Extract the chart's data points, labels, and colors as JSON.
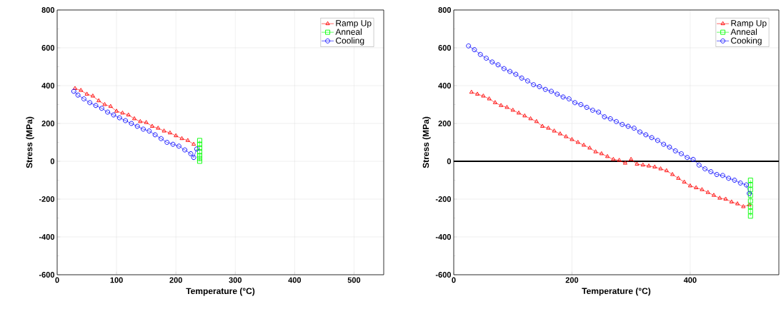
{
  "chart_data": [
    {
      "type": "line",
      "xlabel": "Temperature (°C)",
      "ylabel": "Stress (MPa)",
      "xlim": [
        0,
        550
      ],
      "ylim": [
        -600,
        800
      ],
      "xticks": [
        0,
        100,
        200,
        300,
        400,
        500
      ],
      "yticks": [
        -600,
        -400,
        -200,
        0,
        200,
        400,
        600,
        800
      ],
      "grid": true,
      "legend": "top right",
      "series": [
        {
          "name": "Ramp Up",
          "color": "#ff0000",
          "marker": "triangle",
          "x": [
            30,
            40,
            50,
            60,
            70,
            80,
            90,
            100,
            110,
            120,
            130,
            140,
            150,
            160,
            170,
            180,
            190,
            200,
            210,
            220,
            230
          ],
          "values": [
            385,
            375,
            355,
            345,
            320,
            300,
            290,
            265,
            255,
            245,
            225,
            210,
            205,
            185,
            175,
            160,
            150,
            135,
            120,
            110,
            90
          ]
        },
        {
          "name": "Anneal",
          "color": "#00ff00",
          "marker": "square",
          "x": [
            240,
            240,
            240,
            240,
            240,
            240,
            240
          ],
          "values": [
            110,
            90,
            70,
            50,
            30,
            15,
            0
          ]
        },
        {
          "name": "Cooling",
          "color": "#0000ff",
          "marker": "circle",
          "x": [
            235,
            230,
            225,
            215,
            205,
            195,
            185,
            175,
            165,
            155,
            145,
            135,
            125,
            115,
            105,
            95,
            85,
            75,
            65,
            55,
            45,
            35,
            28
          ],
          "values": [
            65,
            20,
            40,
            60,
            80,
            90,
            100,
            120,
            140,
            160,
            170,
            185,
            200,
            215,
            230,
            245,
            260,
            280,
            295,
            310,
            330,
            350,
            370
          ]
        }
      ]
    },
    {
      "type": "line",
      "xlabel": "Temperature (°C)",
      "ylabel": "Stress (MPa)",
      "xlim": [
        0,
        550
      ],
      "ylim": [
        -600,
        800
      ],
      "xticks": [
        0,
        200,
        400
      ],
      "yticks": [
        -600,
        -400,
        -200,
        0,
        200,
        400,
        600,
        800
      ],
      "grid": true,
      "legend": "top right",
      "ref_lines": [
        {
          "axis": "y",
          "value": 0,
          "color": "#000000"
        }
      ],
      "series": [
        {
          "name": "Ramp Up",
          "color": "#ff0000",
          "marker": "triangle",
          "x": [
            30,
            40,
            50,
            60,
            70,
            80,
            90,
            100,
            110,
            120,
            130,
            140,
            150,
            160,
            170,
            180,
            190,
            200,
            210,
            220,
            230,
            240,
            250,
            260,
            270,
            280,
            290,
            300,
            310,
            320,
            330,
            340,
            350,
            360,
            370,
            380,
            390,
            400,
            410,
            420,
            430,
            440,
            450,
            460,
            470,
            480,
            490,
            500
          ],
          "values": [
            365,
            355,
            345,
            330,
            310,
            295,
            285,
            270,
            255,
            240,
            225,
            210,
            185,
            175,
            160,
            145,
            130,
            115,
            100,
            85,
            70,
            50,
            40,
            25,
            10,
            5,
            -10,
            10,
            -15,
            -20,
            -25,
            -30,
            -40,
            -50,
            -70,
            -90,
            -110,
            -130,
            -140,
            -150,
            -165,
            -180,
            -195,
            -200,
            -215,
            -225,
            -240,
            -230
          ]
        },
        {
          "name": "Anneal",
          "color": "#00ff00",
          "marker": "square",
          "x": [
            502,
            502,
            502,
            502,
            502,
            502,
            502,
            502
          ],
          "values": [
            -100,
            -125,
            -150,
            -180,
            -210,
            -240,
            -265,
            -290
          ]
        },
        {
          "name": "Cooking",
          "color": "#0000ff",
          "marker": "circle",
          "x": [
            500,
            495,
            485,
            475,
            465,
            455,
            445,
            435,
            425,
            415,
            405,
            395,
            385,
            375,
            365,
            355,
            345,
            335,
            325,
            315,
            305,
            295,
            285,
            275,
            265,
            255,
            245,
            235,
            225,
            215,
            205,
            195,
            185,
            175,
            165,
            155,
            145,
            135,
            125,
            115,
            105,
            95,
            85,
            75,
            65,
            55,
            45,
            35,
            25
          ],
          "values": [
            -170,
            -125,
            -115,
            -100,
            -90,
            -75,
            -70,
            -55,
            -40,
            -20,
            10,
            20,
            40,
            55,
            75,
            90,
            110,
            125,
            140,
            155,
            175,
            185,
            195,
            210,
            225,
            235,
            260,
            270,
            285,
            300,
            310,
            330,
            340,
            355,
            370,
            380,
            395,
            405,
            425,
            440,
            460,
            475,
            490,
            510,
            525,
            545,
            565,
            590,
            610
          ]
        }
      ]
    }
  ]
}
